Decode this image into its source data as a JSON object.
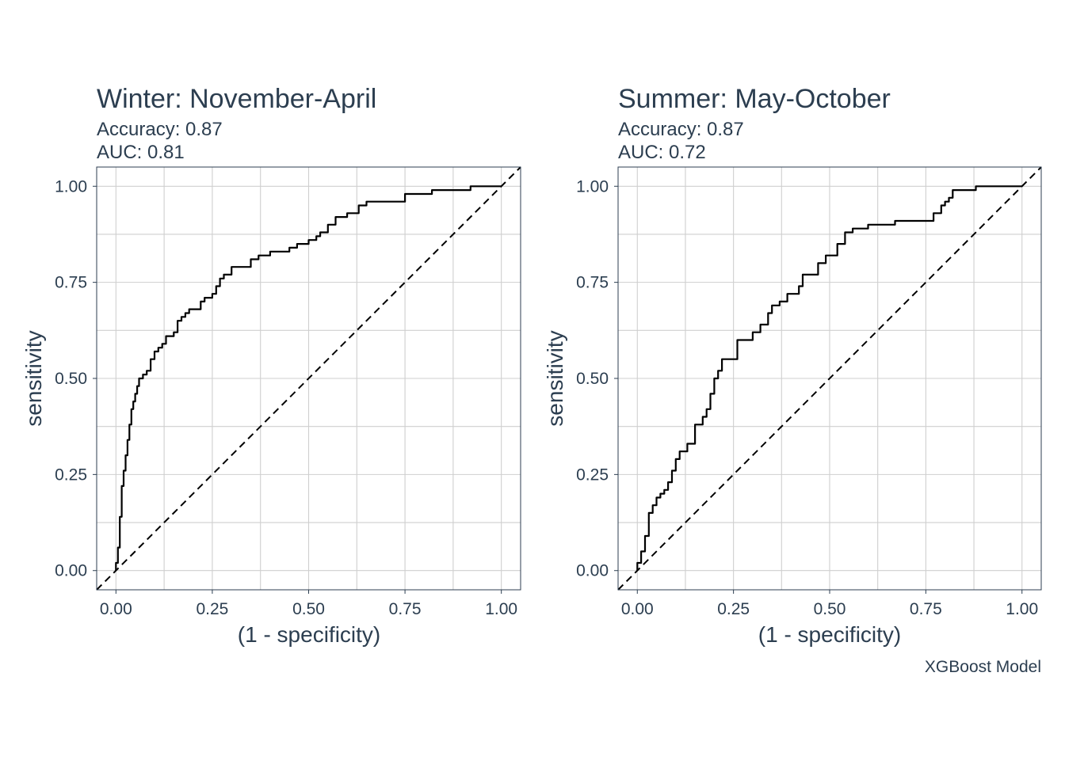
{
  "caption": "XGBoost Model",
  "chart_data": [
    {
      "type": "line",
      "title": "Winter: November-April",
      "subtitle_lines": [
        "Accuracy: 0.87",
        "AUC: 0.81"
      ],
      "xlabel": "(1 - specificity)",
      "ylabel": "sensitivity",
      "xlim": [
        -0.05,
        1.05
      ],
      "ylim": [
        -0.05,
        1.05
      ],
      "x_ticks": [
        0,
        0.25,
        0.5,
        0.75,
        1
      ],
      "x_tick_labels": [
        "0.00",
        "0.25",
        "0.50",
        "0.75",
        "1.00"
      ],
      "y_ticks": [
        0,
        0.25,
        0.5,
        0.75,
        1
      ],
      "y_tick_labels": [
        "0.00",
        "0.25",
        "0.50",
        "0.75",
        "1.00"
      ],
      "grid": true,
      "reference_line": {
        "style": "dashed",
        "from": [
          -0.05,
          -0.05
        ],
        "to": [
          1.05,
          1.05
        ]
      },
      "series": [
        {
          "x": [
            0.0,
            0.0,
            0.005,
            0.005,
            0.01,
            0.01,
            0.015,
            0.015,
            0.02,
            0.02,
            0.025,
            0.025,
            0.03,
            0.03,
            0.035,
            0.035,
            0.04,
            0.04,
            0.045,
            0.045,
            0.05,
            0.05,
            0.055,
            0.055,
            0.06,
            0.06,
            0.07,
            0.07,
            0.08,
            0.08,
            0.09,
            0.09,
            0.1,
            0.1,
            0.11,
            0.11,
            0.12,
            0.12,
            0.13,
            0.13,
            0.15,
            0.15,
            0.16,
            0.16,
            0.17,
            0.17,
            0.18,
            0.18,
            0.19,
            0.19,
            0.22,
            0.22,
            0.23,
            0.23,
            0.25,
            0.25,
            0.26,
            0.26,
            0.27,
            0.27,
            0.28,
            0.28,
            0.3,
            0.3,
            0.35,
            0.35,
            0.37,
            0.37,
            0.4,
            0.4,
            0.45,
            0.45,
            0.47,
            0.47,
            0.5,
            0.5,
            0.52,
            0.52,
            0.53,
            0.53,
            0.55,
            0.55,
            0.57,
            0.57,
            0.6,
            0.6,
            0.63,
            0.63,
            0.65,
            0.65,
            0.75,
            0.75,
            0.82,
            0.82,
            0.92,
            0.92,
            1.0
          ],
          "y": [
            0.0,
            0.02,
            0.02,
            0.06,
            0.06,
            0.14,
            0.14,
            0.22,
            0.22,
            0.26,
            0.26,
            0.3,
            0.3,
            0.34,
            0.34,
            0.38,
            0.38,
            0.42,
            0.42,
            0.44,
            0.44,
            0.46,
            0.46,
            0.48,
            0.48,
            0.5,
            0.5,
            0.51,
            0.51,
            0.52,
            0.52,
            0.55,
            0.55,
            0.57,
            0.57,
            0.58,
            0.58,
            0.59,
            0.59,
            0.61,
            0.61,
            0.62,
            0.62,
            0.65,
            0.65,
            0.66,
            0.66,
            0.67,
            0.67,
            0.68,
            0.68,
            0.7,
            0.7,
            0.71,
            0.71,
            0.72,
            0.72,
            0.74,
            0.74,
            0.76,
            0.76,
            0.77,
            0.77,
            0.79,
            0.79,
            0.81,
            0.81,
            0.82,
            0.82,
            0.83,
            0.83,
            0.84,
            0.84,
            0.85,
            0.85,
            0.86,
            0.86,
            0.87,
            0.87,
            0.88,
            0.88,
            0.9,
            0.9,
            0.92,
            0.92,
            0.93,
            0.93,
            0.95,
            0.95,
            0.96,
            0.96,
            0.98,
            0.98,
            0.99,
            0.99,
            1.0,
            1.0
          ]
        }
      ]
    },
    {
      "type": "line",
      "title": "Summer: May-October",
      "subtitle_lines": [
        "Accuracy: 0.87",
        "AUC: 0.72"
      ],
      "xlabel": "(1 - specificity)",
      "ylabel": "sensitivity",
      "xlim": [
        -0.05,
        1.05
      ],
      "ylim": [
        -0.05,
        1.05
      ],
      "x_ticks": [
        0,
        0.25,
        0.5,
        0.75,
        1
      ],
      "x_tick_labels": [
        "0.00",
        "0.25",
        "0.50",
        "0.75",
        "1.00"
      ],
      "y_ticks": [
        0,
        0.25,
        0.5,
        0.75,
        1
      ],
      "y_tick_labels": [
        "0.00",
        "0.25",
        "0.50",
        "0.75",
        "1.00"
      ],
      "grid": true,
      "reference_line": {
        "style": "dashed",
        "from": [
          -0.05,
          -0.05
        ],
        "to": [
          1.05,
          1.05
        ]
      },
      "series": [
        {
          "x": [
            0.0,
            0.0,
            0.01,
            0.01,
            0.02,
            0.02,
            0.03,
            0.03,
            0.04,
            0.04,
            0.05,
            0.05,
            0.06,
            0.06,
            0.07,
            0.07,
            0.08,
            0.08,
            0.09,
            0.09,
            0.1,
            0.1,
            0.11,
            0.11,
            0.13,
            0.13,
            0.15,
            0.15,
            0.17,
            0.17,
            0.18,
            0.18,
            0.19,
            0.19,
            0.2,
            0.2,
            0.21,
            0.21,
            0.22,
            0.22,
            0.26,
            0.26,
            0.3,
            0.3,
            0.32,
            0.32,
            0.34,
            0.34,
            0.35,
            0.35,
            0.37,
            0.37,
            0.39,
            0.39,
            0.42,
            0.42,
            0.43,
            0.43,
            0.47,
            0.47,
            0.49,
            0.49,
            0.52,
            0.52,
            0.54,
            0.54,
            0.56,
            0.56,
            0.6,
            0.6,
            0.67,
            0.67,
            0.77,
            0.77,
            0.79,
            0.79,
            0.8,
            0.8,
            0.81,
            0.81,
            0.82,
            0.82,
            0.88,
            0.88,
            1.0
          ],
          "y": [
            0.0,
            0.02,
            0.02,
            0.05,
            0.05,
            0.09,
            0.09,
            0.15,
            0.15,
            0.17,
            0.17,
            0.19,
            0.19,
            0.2,
            0.2,
            0.21,
            0.21,
            0.23,
            0.23,
            0.26,
            0.26,
            0.29,
            0.29,
            0.31,
            0.31,
            0.33,
            0.33,
            0.38,
            0.38,
            0.4,
            0.4,
            0.42,
            0.42,
            0.46,
            0.46,
            0.5,
            0.5,
            0.52,
            0.52,
            0.55,
            0.55,
            0.6,
            0.6,
            0.62,
            0.62,
            0.64,
            0.64,
            0.67,
            0.67,
            0.69,
            0.69,
            0.7,
            0.7,
            0.72,
            0.72,
            0.74,
            0.74,
            0.77,
            0.77,
            0.8,
            0.8,
            0.82,
            0.82,
            0.85,
            0.85,
            0.88,
            0.88,
            0.89,
            0.89,
            0.9,
            0.9,
            0.91,
            0.91,
            0.93,
            0.93,
            0.95,
            0.95,
            0.96,
            0.96,
            0.97,
            0.97,
            0.99,
            0.99,
            1.0,
            1.0
          ]
        }
      ]
    }
  ]
}
